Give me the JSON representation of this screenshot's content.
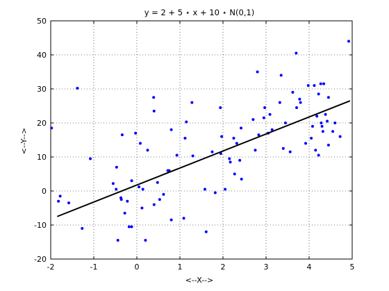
{
  "chart_data": {
    "type": "scatter",
    "title": "y = 2 + 5 ⋆ x + 10 ⋆ N(0,1)",
    "xlabel": "<--X-->",
    "ylabel": "<--Y-->",
    "xlim": [
      -2,
      5
    ],
    "ylim": [
      -20,
      50
    ],
    "xticks": [
      -2,
      -1,
      0,
      1,
      2,
      3,
      4,
      5
    ],
    "yticks": [
      -20,
      -10,
      0,
      10,
      20,
      30,
      40,
      50
    ],
    "grid": true,
    "grid_style": "dotted",
    "legend": "none",
    "points_color": "#0000ff",
    "line_color": "#000000",
    "fit_line": {
      "x": [
        -1.85,
        4.95
      ],
      "y": [
        -7.5,
        26.5
      ]
    },
    "points": [
      [
        -1.98,
        18.5
      ],
      [
        -1.78,
        -1.5
      ],
      [
        -1.82,
        -3
      ],
      [
        -1.58,
        -3.5
      ],
      [
        -1.38,
        30.2
      ],
      [
        -1.27,
        -11
      ],
      [
        -1.08,
        9.5
      ],
      [
        -0.55,
        2.2
      ],
      [
        -0.48,
        0.5
      ],
      [
        -0.47,
        7
      ],
      [
        -0.44,
        -14.5
      ],
      [
        -0.37,
        -2
      ],
      [
        -0.36,
        -2.5
      ],
      [
        -0.34,
        16.5
      ],
      [
        -0.28,
        -6.5
      ],
      [
        -0.22,
        -3
      ],
      [
        -0.18,
        -10.5
      ],
      [
        -0.12,
        -10.5
      ],
      [
        -0.12,
        3
      ],
      [
        -0.03,
        17
      ],
      [
        0.05,
        1.2
      ],
      [
        0.08,
        14
      ],
      [
        0.14,
        0.5
      ],
      [
        0.12,
        -5
      ],
      [
        0.2,
        -14.5
      ],
      [
        0.25,
        12
      ],
      [
        0.39,
        27.5
      ],
      [
        0.4,
        -4
      ],
      [
        0.4,
        23.5
      ],
      [
        0.48,
        2.5
      ],
      [
        0.53,
        -2.5
      ],
      [
        0.62,
        -1
      ],
      [
        0.72,
        6
      ],
      [
        0.75,
        6
      ],
      [
        0.8,
        -8.5
      ],
      [
        0.8,
        18
      ],
      [
        0.93,
        10.5
      ],
      [
        1.09,
        -8
      ],
      [
        1.12,
        15.5
      ],
      [
        1.15,
        20.3
      ],
      [
        1.28,
        26
      ],
      [
        1.3,
        10.3
      ],
      [
        1.58,
        0.5
      ],
      [
        1.61,
        -12
      ],
      [
        1.75,
        11.5
      ],
      [
        1.82,
        -0.5
      ],
      [
        1.94,
        24.5
      ],
      [
        1.95,
        11
      ],
      [
        1.97,
        16
      ],
      [
        2.05,
        0.5
      ],
      [
        2.15,
        9.5
      ],
      [
        2.17,
        8.5
      ],
      [
        2.25,
        15.5
      ],
      [
        2.27,
        5
      ],
      [
        2.32,
        14
      ],
      [
        2.39,
        9
      ],
      [
        2.42,
        18.5
      ],
      [
        2.43,
        3.5
      ],
      [
        2.7,
        21
      ],
      [
        2.75,
        12
      ],
      [
        2.8,
        35
      ],
      [
        2.83,
        16.5
      ],
      [
        2.95,
        21.5
      ],
      [
        2.97,
        24.5
      ],
      [
        3.05,
        17
      ],
      [
        3.09,
        22.5
      ],
      [
        3.14,
        18
      ],
      [
        3.32,
        26
      ],
      [
        3.35,
        34
      ],
      [
        3.4,
        12.5
      ],
      [
        3.45,
        20
      ],
      [
        3.56,
        11.5
      ],
      [
        3.62,
        29
      ],
      [
        3.7,
        40.5
      ],
      [
        3.71,
        24.5
      ],
      [
        3.78,
        27
      ],
      [
        3.8,
        26
      ],
      [
        3.92,
        14
      ],
      [
        3.98,
        31
      ],
      [
        4.05,
        15.5
      ],
      [
        4.08,
        19
      ],
      [
        4.12,
        31
      ],
      [
        4.15,
        12
      ],
      [
        4.18,
        22
      ],
      [
        4.22,
        28.5
      ],
      [
        4.22,
        10.5
      ],
      [
        4.27,
        31.5
      ],
      [
        4.28,
        20
      ],
      [
        4.3,
        19
      ],
      [
        4.32,
        17.5
      ],
      [
        4.34,
        31.5
      ],
      [
        4.38,
        22.5
      ],
      [
        4.42,
        20.5
      ],
      [
        4.45,
        27.5
      ],
      [
        4.45,
        13.5
      ],
      [
        4.55,
        17.5
      ],
      [
        4.6,
        20
      ],
      [
        4.72,
        16
      ],
      [
        4.92,
        44
      ]
    ]
  }
}
